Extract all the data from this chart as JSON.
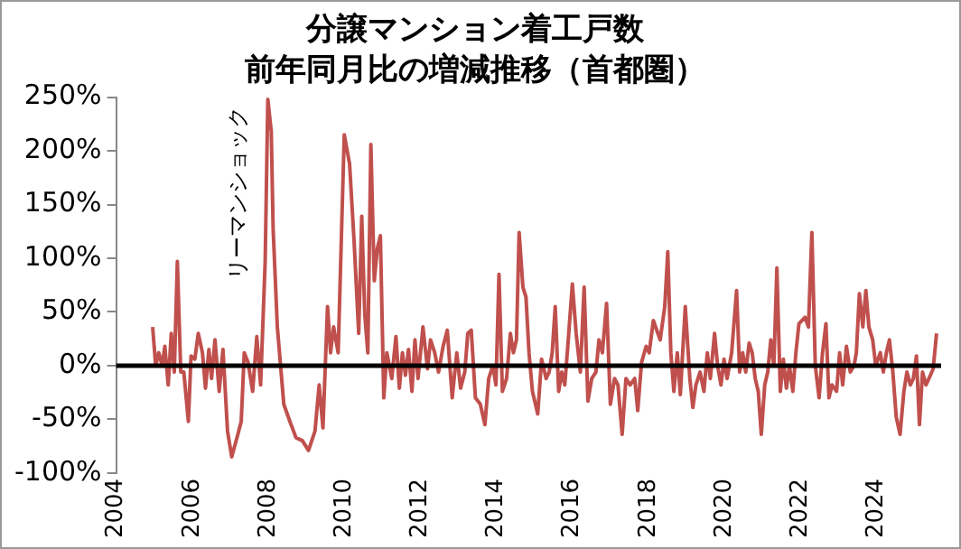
{
  "chart_data": {
    "type": "line",
    "title": "分譲マンション着工戸数",
    "subtitle": "前年同月比の増減推移（首都圏）",
    "annotations": [
      {
        "text": "リーマンショック",
        "x": 2007.99,
        "y": 248
      }
    ],
    "xlim": [
      2004,
      2025.7
    ],
    "xticks": [
      2004,
      2006,
      2008,
      2010,
      2012,
      2014,
      2016,
      2018,
      2020,
      2022,
      2024
    ],
    "ylim": [
      -100,
      250
    ],
    "yticks": [
      {
        "value": -100,
        "label": "-100%"
      },
      {
        "value": -50,
        "label": "-50%"
      },
      {
        "value": 0,
        "label": "0%"
      },
      {
        "value": 50,
        "label": "50%"
      },
      {
        "value": 100,
        "label": "100%"
      },
      {
        "value": 150,
        "label": "150%"
      },
      {
        "value": 200,
        "label": "200%"
      },
      {
        "value": 250,
        "label": "250%"
      }
    ],
    "ref_lines": [
      {
        "axis": "y",
        "value": 0,
        "color": "#000000"
      }
    ],
    "grid": false,
    "legend": false,
    "marker": "none",
    "line_style": "solid",
    "series": [
      {
        "color": "#c0504d",
        "x": [
          2004.96,
          2005.04,
          2005.12,
          2005.21,
          2005.28,
          2005.37,
          2005.45,
          2005.53,
          2005.61,
          2005.7,
          2005.78,
          2005.9,
          2005.97,
          2006.07,
          2006.16,
          2006.27,
          2006.35,
          2006.44,
          2006.51,
          2006.6,
          2006.71,
          2006.81,
          2006.93,
          2007.04,
          2007.18,
          2007.29,
          2007.37,
          2007.47,
          2007.59,
          2007.7,
          2007.8,
          2007.92,
          2007.99,
          2008.08,
          2008.13,
          2008.24,
          2008.41,
          2008.57,
          2008.73,
          2008.9,
          2009.06,
          2009.23,
          2009.34,
          2009.44,
          2009.56,
          2009.64,
          2009.72,
          2009.84,
          2010.0,
          2010.14,
          2010.26,
          2010.38,
          2010.46,
          2010.54,
          2010.62,
          2010.7,
          2010.79,
          2010.87,
          2010.95,
          2011.04,
          2011.12,
          2011.25,
          2011.36,
          2011.45,
          2011.53,
          2011.61,
          2011.69,
          2011.78,
          2011.86,
          2011.94,
          2012.07,
          2012.19,
          2012.27,
          2012.38,
          2012.48,
          2012.6,
          2012.71,
          2012.84,
          2012.96,
          2013.06,
          2013.17,
          2013.25,
          2013.34,
          2013.45,
          2013.58,
          2013.7,
          2013.8,
          2013.91,
          2013.99,
          2014.07,
          2014.16,
          2014.27,
          2014.37,
          2014.45,
          2014.53,
          2014.6,
          2014.7,
          2014.78,
          2014.86,
          2014.95,
          2015.03,
          2015.09,
          2015.19,
          2015.31,
          2015.39,
          2015.47,
          2015.55,
          2015.64,
          2015.72,
          2015.8,
          2015.88,
          2016.0,
          2016.1,
          2016.21,
          2016.31,
          2016.41,
          2016.51,
          2016.62,
          2016.7,
          2016.79,
          2016.9,
          2017.0,
          2017.11,
          2017.2,
          2017.31,
          2017.41,
          2017.52,
          2017.64,
          2017.72,
          2017.82,
          2017.94,
          2018.02,
          2018.13,
          2018.31,
          2018.43,
          2018.51,
          2018.59,
          2018.67,
          2018.76,
          2018.84,
          2018.97,
          2019.09,
          2019.17,
          2019.25,
          2019.36,
          2019.46,
          2019.55,
          2019.63,
          2019.74,
          2019.82,
          2019.91,
          2019.99,
          2020.07,
          2020.19,
          2020.32,
          2020.4,
          2020.48,
          2020.56,
          2020.65,
          2020.73,
          2020.81,
          2020.89,
          2020.97,
          2021.06,
          2021.14,
          2021.22,
          2021.3,
          2021.38,
          2021.47,
          2021.55,
          2021.63,
          2021.71,
          2021.8,
          2021.88,
          2021.96,
          2022.04,
          2022.12,
          2022.21,
          2022.3,
          2022.39,
          2022.49,
          2022.58,
          2022.67,
          2022.75,
          2022.83,
          2022.95,
          2023.03,
          2023.11,
          2023.21,
          2023.31,
          2023.41,
          2023.47,
          2023.55,
          2023.64,
          2023.72,
          2023.8,
          2023.9,
          2023.98,
          2024.1,
          2024.18,
          2024.26,
          2024.34,
          2024.43,
          2024.52,
          2024.62,
          2024.72,
          2024.8,
          2024.89,
          2024.97,
          2025.05,
          2025.13,
          2025.21,
          2025.3,
          2025.38,
          2025.49,
          2025.58
        ],
        "values": [
          36,
          0,
          12,
          0,
          18,
          -18,
          30,
          -6,
          97,
          -6,
          -6,
          -52,
          9,
          6,
          30,
          12,
          -21,
          15,
          -12,
          24,
          -24,
          15,
          -61,
          -85,
          -67,
          -52,
          12,
          3,
          -24,
          27,
          -18,
          97,
          248,
          218,
          127,
          36,
          -36,
          -52,
          -67,
          -70,
          -79,
          -61,
          -18,
          -58,
          55,
          12,
          36,
          12,
          215,
          188,
          115,
          30,
          139,
          48,
          12,
          206,
          79,
          109,
          121,
          -30,
          12,
          -12,
          27,
          -21,
          12,
          -9,
          15,
          -24,
          24,
          -12,
          36,
          -3,
          24,
          12,
          -6,
          18,
          33,
          -30,
          12,
          -21,
          -6,
          30,
          33,
          -30,
          -36,
          -55,
          -12,
          0,
          -18,
          85,
          -24,
          -12,
          30,
          12,
          24,
          124,
          73,
          64,
          12,
          -24,
          -36,
          -45,
          6,
          -12,
          -6,
          12,
          55,
          -24,
          -6,
          -18,
          18,
          76,
          30,
          -6,
          73,
          -33,
          -12,
          -6,
          24,
          12,
          58,
          -36,
          -12,
          -18,
          -64,
          -12,
          -18,
          -12,
          -42,
          3,
          18,
          12,
          42,
          24,
          55,
          106,
          12,
          -24,
          12,
          -27,
          55,
          -12,
          -39,
          -18,
          -6,
          -24,
          12,
          -12,
          30,
          0,
          -18,
          6,
          -12,
          12,
          70,
          -6,
          12,
          -6,
          21,
          12,
          -12,
          -24,
          -64,
          -18,
          -6,
          24,
          0,
          91,
          -24,
          6,
          -21,
          0,
          -24,
          12,
          39,
          42,
          45,
          36,
          124,
          0,
          -30,
          12,
          39,
          -30,
          -18,
          -24,
          12,
          -18,
          18,
          -6,
          0,
          12,
          67,
          36,
          70,
          36,
          24,
          0,
          12,
          -6,
          12,
          24,
          -6,
          -48,
          -64,
          -24,
          -6,
          -18,
          -12,
          9,
          -55,
          -6,
          -18,
          -12,
          -3,
          30
        ]
      }
    ]
  }
}
